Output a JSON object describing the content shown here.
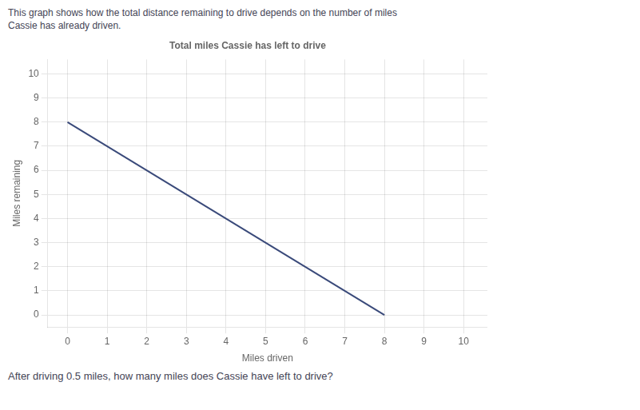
{
  "chart_data": {
    "type": "line",
    "title": "Total miles Cassie has left to drive",
    "subtitle": [
      "This graph shows how the total distance remaining to drive depends on the number of miles",
      "Cassie has already driven."
    ],
    "annotations": [
      "After driving 0.5 miles, how many miles does Cassie have left to drive?"
    ],
    "xlabel": "Miles driven",
    "ylabel": "Miles remaining",
    "x": [
      0,
      8
    ],
    "series": [
      {
        "values": [
          8,
          0
        ],
        "color": "#3a4a7a"
      }
    ],
    "xlim": [
      -0.5,
      10.6
    ],
    "ylim": [
      -0.5,
      10.6
    ],
    "xticks": [
      0,
      1,
      2,
      3,
      4,
      5,
      6,
      7,
      8,
      9,
      10
    ],
    "yticks": [
      0,
      1,
      2,
      3,
      4,
      5,
      6,
      7,
      8,
      9,
      10
    ],
    "grid": true
  }
}
